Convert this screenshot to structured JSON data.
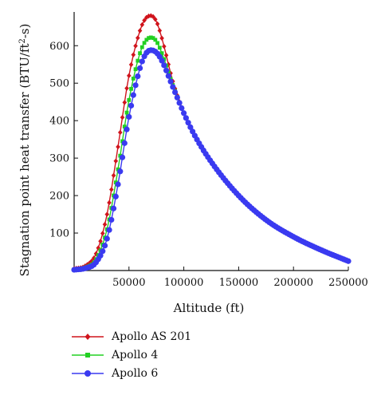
{
  "chart_data": {
    "type": "line",
    "xlabel": "Altitude (ft)",
    "ylabel": "Stagnation point heat transfer (BTU/ft",
    "ylabel_sup": "2",
    "ylabel_tail": "-s)",
    "xlim": [
      0,
      250000
    ],
    "ylim": [
      0,
      690
    ],
    "xticks": [
      50000,
      100000,
      150000,
      200000,
      250000
    ],
    "xtick_labels": [
      "50000",
      "100000",
      "150000",
      "200000",
      "250000"
    ],
    "yticks": [
      100,
      200,
      300,
      400,
      500,
      600
    ],
    "ytick_labels": [
      "100",
      "200",
      "300",
      "400",
      "500",
      "600"
    ],
    "grid": false,
    "legend_position": "bottom-left",
    "x": [
      0,
      10000,
      20000,
      30000,
      40000,
      50000,
      60000,
      65000,
      70000,
      75000,
      80000,
      90000,
      100000,
      110000,
      125000,
      150000,
      175000,
      200000,
      225000,
      250000
    ],
    "series": [
      {
        "name": "Apollo AS 201",
        "color": "#d0141c",
        "marker": "diamond",
        "values": [
          5,
          12,
          45,
          150,
          330,
          520,
          640,
          672,
          680,
          665,
          620,
          505,
          420,
          360,
          290,
          200,
          135,
          90,
          55,
          25
        ]
      },
      {
        "name": "Apollo 4",
        "color": "#22d022",
        "marker": "square",
        "values": [
          3,
          8,
          30,
          110,
          270,
          455,
          580,
          612,
          622,
          612,
          580,
          495,
          420,
          360,
          290,
          200,
          135,
          90,
          55,
          25
        ]
      },
      {
        "name": "Apollo 6",
        "color": "#3a3af0",
        "marker": "circle",
        "values": [
          2,
          6,
          22,
          85,
          230,
          410,
          540,
          577,
          588,
          582,
          560,
          490,
          420,
          360,
          290,
          200,
          135,
          90,
          55,
          25
        ]
      }
    ]
  }
}
